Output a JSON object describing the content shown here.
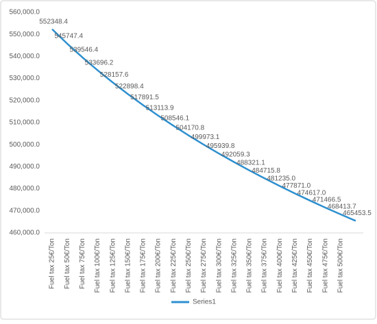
{
  "chart_data": {
    "type": "line",
    "categories": [
      "Fuel tax 25€/Ton",
      "Fuel tax 50€/Ton",
      "Fuel tax 75€/Ton",
      "Fuel tax 100€/Ton",
      "Fuel tax 125€/Ton",
      "Fuel tax 150€/Ton",
      "Fuel tax 175€/Ton",
      "Fuel tax 200€/Ton",
      "Fuel tax 225€/Ton",
      "Fuel tax 250€/Ton",
      "Fuel tax 275€/Ton",
      "Fuel tax 300€/Ton",
      "Fuel tax 325€/Ton",
      "Fuel tax 350€/Ton",
      "Fuel tax 375€/Ton",
      "Fuel tax 400€/Ton",
      "Fuel tax 425€/Ton",
      "Fuel tax 450€/Ton",
      "Fuel tax 475€/Ton",
      "Fuel tax 500€/Ton",
      null
    ],
    "series": [
      {
        "name": "Series1",
        "color": "#2e8fcf",
        "values": [
          552348.4,
          545747.4,
          539546.4,
          533696.2,
          528157.6,
          522898.4,
          517891.5,
          513113.9,
          508546.1,
          504170.8,
          499973.1,
          495939.8,
          492059.3,
          488321.1,
          484715.8,
          481235.0,
          477871.0,
          474617.0,
          471466.5,
          468413.7,
          465453.5
        ],
        "value_labels": [
          "552348.4",
          "545747.4",
          "539546.4",
          "533696.2",
          "528157.6",
          "522898.4",
          "517891.5",
          "513113.9",
          "508546.1",
          "504170.8",
          "499973.1",
          "495939.8",
          "492059.3",
          "488321.1",
          "484715.8",
          "481235.0",
          "477871.0",
          "474617.0",
          "471466.5",
          "468413.7",
          "465453.5"
        ]
      }
    ],
    "ylim": [
      460000,
      560000
    ],
    "yticks": [
      {
        "value": 460000,
        "label": "460,000.0"
      },
      {
        "value": 470000,
        "label": "470,000.0"
      },
      {
        "value": 480000,
        "label": "480,000.0"
      },
      {
        "value": 490000,
        "label": "490,000.0"
      },
      {
        "value": 500000,
        "label": "500,000.0"
      },
      {
        "value": 510000,
        "label": "510,000.0"
      },
      {
        "value": 520000,
        "label": "520,000.0"
      },
      {
        "value": 530000,
        "label": "530,000.0"
      },
      {
        "value": 540000,
        "label": "540,000.0"
      },
      {
        "value": 550000,
        "label": "550,000.0"
      },
      {
        "value": 560000,
        "label": "560,000.0"
      }
    ],
    "grid": false,
    "legend": "bottom"
  }
}
